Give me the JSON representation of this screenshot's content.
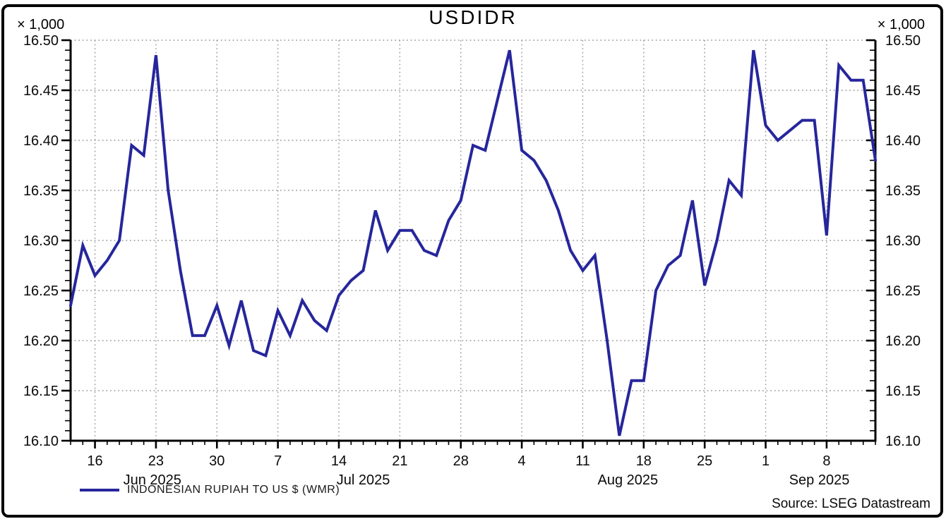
{
  "title": "USDIDR",
  "left_scale_note": "× 1,000",
  "right_scale_note": "× 1,000",
  "legend": {
    "swatch_color": "#26269C",
    "label": "INDONESIAN RUPIAH TO US $ (WMR)"
  },
  "source": "Source: LSEG Datastream",
  "chart_data": {
    "type": "line",
    "title": "USDIDR",
    "unit_multiplier_note": "× 1,000",
    "ylim": [
      16.1,
      16.5
    ],
    "y_major_step": 0.05,
    "y_minor_step": 0.01,
    "y_tick_labels": [
      "16.10",
      "16.15",
      "16.20",
      "16.25",
      "16.30",
      "16.35",
      "16.40",
      "16.45",
      "16.50"
    ],
    "y_axis_sides": "both",
    "grid": "dotted-both-directions",
    "grid_color": "#9a9a9a",
    "line_color": "#26269C",
    "axis_color": "#000000",
    "legend_position": "bottom-left",
    "x_major_ticks": [
      {
        "index": 2,
        "label": "16"
      },
      {
        "index": 7,
        "label": "23"
      },
      {
        "index": 12,
        "label": "30"
      },
      {
        "index": 17,
        "label": "7"
      },
      {
        "index": 22,
        "label": "14"
      },
      {
        "index": 27,
        "label": "21"
      },
      {
        "index": 32,
        "label": "28"
      },
      {
        "index": 37,
        "label": "4"
      },
      {
        "index": 42,
        "label": "11"
      },
      {
        "index": 47,
        "label": "18"
      },
      {
        "index": 52,
        "label": "25"
      },
      {
        "index": 57,
        "label": "1"
      },
      {
        "index": 62,
        "label": "8"
      }
    ],
    "month_labels": [
      {
        "label": "Jun 2025",
        "index": 6.7
      },
      {
        "label": "Jul 2025",
        "index": 24.0
      },
      {
        "label": "Aug 2025",
        "index": 45.7
      },
      {
        "label": "Sep 2025",
        "index": 61.4
      }
    ],
    "series": [
      {
        "name": "INDONESIAN RUPIAH TO US $ (WMR)",
        "points": [
          {
            "date": "12 Jun 2025",
            "value": 16.235
          },
          {
            "date": "13 Jun 2025",
            "value": 16.295
          },
          {
            "date": "16 Jun 2025",
            "value": 16.265
          },
          {
            "date": "17 Jun 2025",
            "value": 16.28
          },
          {
            "date": "18 Jun 2025",
            "value": 16.3
          },
          {
            "date": "19 Jun 2025",
            "value": 16.395
          },
          {
            "date": "20 Jun 2025",
            "value": 16.385
          },
          {
            "date": "23 Jun 2025",
            "value": 16.485
          },
          {
            "date": "24 Jun 2025",
            "value": 16.35
          },
          {
            "date": "25 Jun 2025",
            "value": 16.27
          },
          {
            "date": "26 Jun 2025",
            "value": 16.205
          },
          {
            "date": "27 Jun 2025",
            "value": 16.205
          },
          {
            "date": "30 Jun 2025",
            "value": 16.235
          },
          {
            "date": "1 Jul 2025",
            "value": 16.195
          },
          {
            "date": "2 Jul 2025",
            "value": 16.24
          },
          {
            "date": "3 Jul 2025",
            "value": 16.19
          },
          {
            "date": "4 Jul 2025",
            "value": 16.185
          },
          {
            "date": "7 Jul 2025",
            "value": 16.23
          },
          {
            "date": "8 Jul 2025",
            "value": 16.205
          },
          {
            "date": "9 Jul 2025",
            "value": 16.24
          },
          {
            "date": "10 Jul 2025",
            "value": 16.22
          },
          {
            "date": "11 Jul 2025",
            "value": 16.21
          },
          {
            "date": "14 Jul 2025",
            "value": 16.245
          },
          {
            "date": "15 Jul 2025",
            "value": 16.26
          },
          {
            "date": "16 Jul 2025",
            "value": 16.27
          },
          {
            "date": "17 Jul 2025",
            "value": 16.33
          },
          {
            "date": "18 Jul 2025",
            "value": 16.29
          },
          {
            "date": "21 Jul 2025",
            "value": 16.31
          },
          {
            "date": "22 Jul 2025",
            "value": 16.31
          },
          {
            "date": "23 Jul 2025",
            "value": 16.29
          },
          {
            "date": "24 Jul 2025",
            "value": 16.285
          },
          {
            "date": "25 Jul 2025",
            "value": 16.32
          },
          {
            "date": "28 Jul 2025",
            "value": 16.34
          },
          {
            "date": "29 Jul 2025",
            "value": 16.395
          },
          {
            "date": "30 Jul 2025",
            "value": 16.39
          },
          {
            "date": "31 Jul 2025",
            "value": 16.44
          },
          {
            "date": "1 Aug 2025",
            "value": 16.49
          },
          {
            "date": "4 Aug 2025",
            "value": 16.39
          },
          {
            "date": "5 Aug 2025",
            "value": 16.38
          },
          {
            "date": "6 Aug 2025",
            "value": 16.36
          },
          {
            "date": "7 Aug 2025",
            "value": 16.33
          },
          {
            "date": "8 Aug 2025",
            "value": 16.29
          },
          {
            "date": "11 Aug 2025",
            "value": 16.27
          },
          {
            "date": "12 Aug 2025",
            "value": 16.285
          },
          {
            "date": "13 Aug 2025",
            "value": 16.2
          },
          {
            "date": "14 Aug 2025",
            "value": 16.105
          },
          {
            "date": "15 Aug 2025",
            "value": 16.16
          },
          {
            "date": "18 Aug 2025",
            "value": 16.16
          },
          {
            "date": "19 Aug 2025",
            "value": 16.25
          },
          {
            "date": "20 Aug 2025",
            "value": 16.275
          },
          {
            "date": "21 Aug 2025",
            "value": 16.285
          },
          {
            "date": "22 Aug 2025",
            "value": 16.34
          },
          {
            "date": "25 Aug 2025",
            "value": 16.255
          },
          {
            "date": "26 Aug 2025",
            "value": 16.3
          },
          {
            "date": "27 Aug 2025",
            "value": 16.36
          },
          {
            "date": "28 Aug 2025",
            "value": 16.345
          },
          {
            "date": "29 Aug 2025",
            "value": 16.49
          },
          {
            "date": "1 Sep 2025",
            "value": 16.415
          },
          {
            "date": "2 Sep 2025",
            "value": 16.4
          },
          {
            "date": "3 Sep 2025",
            "value": 16.41
          },
          {
            "date": "4 Sep 2025",
            "value": 16.42
          },
          {
            "date": "5 Sep 2025",
            "value": 16.42
          },
          {
            "date": "8 Sep 2025",
            "value": 16.305
          },
          {
            "date": "9 Sep 2025",
            "value": 16.475
          },
          {
            "date": "10 Sep 2025",
            "value": 16.46
          },
          {
            "date": "11 Sep 2025",
            "value": 16.46
          },
          {
            "date": "12 Sep 2025",
            "value": 16.38
          }
        ]
      }
    ]
  }
}
